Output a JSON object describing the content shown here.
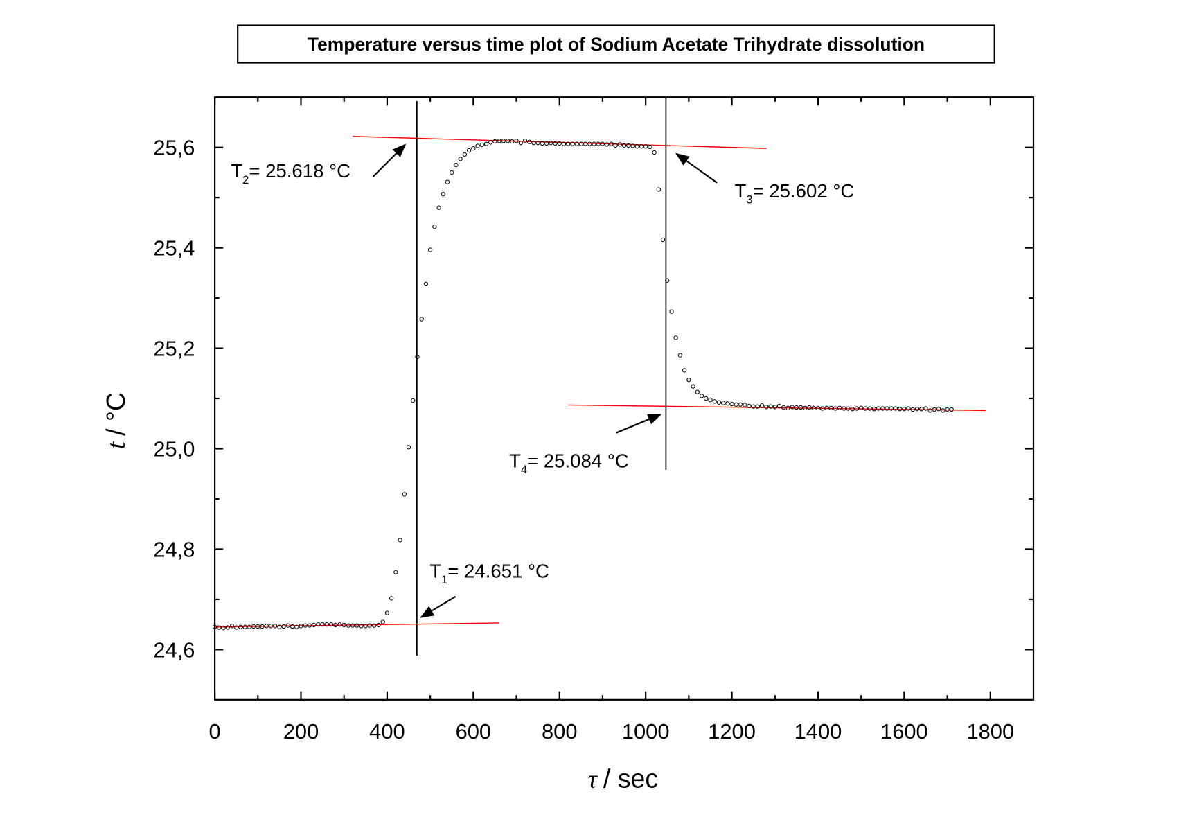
{
  "chart_data": {
    "type": "scatter",
    "title": "Temperature versus time plot of Sodium Acetate Trihydrate dissolution",
    "xlabel": {
      "symbol": "τ",
      "rest": "/ sec"
    },
    "ylabel": {
      "symbol": "t",
      "rest": "/ °C"
    },
    "xlim": [
      0,
      1900
    ],
    "ylim": [
      24.5,
      25.7
    ],
    "xticks": [
      0,
      200,
      400,
      600,
      800,
      1000,
      1200,
      1400,
      1600,
      1800
    ],
    "xminorticks": [
      100,
      300,
      500,
      700,
      900,
      1100,
      1300,
      1500,
      1700
    ],
    "yticks": [
      {
        "value": 24.6,
        "label": "24,6"
      },
      {
        "value": 24.8,
        "label": "24,8"
      },
      {
        "value": 25.0,
        "label": "25,0"
      },
      {
        "value": 25.2,
        "label": "25,2"
      },
      {
        "value": 25.4,
        "label": "25,4"
      },
      {
        "value": 25.6,
        "label": "25,6"
      }
    ],
    "yminorticks": [
      24.7,
      24.9,
      25.1,
      25.3,
      25.5
    ],
    "marker_color": "#000000",
    "x": [
      0,
      10,
      20,
      30,
      40,
      50,
      60,
      70,
      80,
      90,
      100,
      110,
      120,
      130,
      140,
      150,
      160,
      170,
      180,
      190,
      200,
      210,
      220,
      230,
      240,
      250,
      260,
      270,
      280,
      290,
      300,
      310,
      320,
      330,
      340,
      350,
      360,
      370,
      380,
      390,
      400,
      410,
      420,
      430,
      440,
      450,
      460,
      470,
      480,
      490,
      500,
      510,
      520,
      530,
      540,
      550,
      560,
      570,
      580,
      590,
      600,
      610,
      620,
      630,
      640,
      650,
      660,
      670,
      680,
      690,
      700,
      710,
      720,
      730,
      740,
      750,
      760,
      770,
      780,
      790,
      800,
      810,
      820,
      830,
      840,
      850,
      860,
      870,
      880,
      890,
      900,
      910,
      920,
      930,
      940,
      950,
      960,
      970,
      980,
      990,
      1000,
      1010,
      1020,
      1030,
      1040,
      1050,
      1060,
      1070,
      1080,
      1090,
      1100,
      1110,
      1120,
      1130,
      1140,
      1150,
      1160,
      1170,
      1180,
      1190,
      1200,
      1210,
      1220,
      1230,
      1240,
      1250,
      1260,
      1270,
      1280,
      1290,
      1300,
      1310,
      1320,
      1330,
      1340,
      1350,
      1360,
      1370,
      1380,
      1390,
      1400,
      1410,
      1420,
      1430,
      1440,
      1450,
      1460,
      1470,
      1480,
      1490,
      1500,
      1510,
      1520,
      1530,
      1540,
      1550,
      1560,
      1570,
      1580,
      1590,
      1600,
      1610,
      1620,
      1630,
      1640,
      1650,
      1660,
      1670,
      1680,
      1690,
      1700,
      1710
    ],
    "values": [
      24.645,
      24.644,
      24.643,
      24.644,
      24.647,
      24.644,
      24.645,
      24.645,
      24.645,
      24.646,
      24.646,
      24.646,
      24.647,
      24.647,
      24.647,
      24.645,
      24.646,
      24.648,
      24.646,
      24.645,
      24.647,
      24.648,
      24.648,
      24.649,
      24.65,
      24.65,
      24.65,
      24.65,
      24.649,
      24.65,
      24.649,
      24.648,
      24.648,
      24.648,
      24.647,
      24.647,
      24.648,
      24.648,
      24.649,
      24.655,
      24.673,
      24.702,
      24.754,
      24.818,
      24.909,
      25.003,
      25.096,
      25.183,
      25.258,
      25.328,
      25.396,
      25.442,
      25.48,
      25.507,
      25.531,
      25.55,
      25.565,
      25.577,
      25.586,
      25.594,
      25.598,
      25.603,
      25.605,
      25.607,
      25.61,
      25.612,
      25.613,
      25.613,
      25.613,
      25.612,
      25.613,
      25.609,
      25.613,
      25.611,
      25.609,
      25.609,
      25.608,
      25.608,
      25.609,
      25.608,
      25.608,
      25.607,
      25.607,
      25.607,
      25.607,
      25.607,
      25.607,
      25.607,
      25.607,
      25.607,
      25.607,
      25.606,
      25.607,
      25.604,
      25.606,
      25.604,
      25.604,
      25.603,
      25.602,
      25.602,
      25.602,
      25.601,
      25.59,
      25.516,
      25.416,
      25.335,
      25.273,
      25.221,
      25.186,
      25.156,
      25.137,
      25.124,
      25.113,
      25.105,
      25.1,
      25.097,
      25.094,
      25.092,
      25.091,
      25.09,
      25.089,
      25.088,
      25.088,
      25.087,
      25.085,
      25.084,
      25.084,
      25.086,
      25.083,
      25.084,
      25.083,
      25.085,
      25.082,
      25.081,
      25.083,
      25.082,
      25.082,
      25.081,
      25.082,
      25.081,
      25.081,
      25.08,
      25.081,
      25.081,
      25.08,
      25.081,
      25.08,
      25.08,
      25.079,
      25.08,
      25.081,
      25.08,
      25.08,
      25.079,
      25.08,
      25.08,
      25.08,
      25.08,
      25.08,
      25.079,
      25.079,
      25.08,
      25.078,
      25.079,
      25.079,
      25.08,
      25.076,
      25.078,
      25.079,
      25.076,
      25.078,
      25.078
    ],
    "reference_lines": [
      {
        "x": [
          0,
          660
        ],
        "y": [
          24.645,
          24.653
        ],
        "color": "#ff0000"
      },
      {
        "x": [
          320,
          1280
        ],
        "y": [
          25.622,
          25.598
        ],
        "color": "#ff0000"
      },
      {
        "x": [
          820,
          1790
        ],
        "y": [
          25.087,
          25.076
        ],
        "color": "#ff0000"
      },
      {
        "x": [
          469,
          469
        ],
        "y": [
          24.588,
          25.692
        ],
        "color": "#000000"
      },
      {
        "x": [
          1047,
          1047
        ],
        "y": [
          24.958,
          25.7
        ],
        "color": "#000000"
      }
    ],
    "annotations": [
      {
        "text": "T",
        "sub": "1",
        "rest": "= 24.651 °C"
      },
      {
        "text": "T",
        "sub": "2",
        "rest": "= 25.618 °C"
      },
      {
        "text": "T",
        "sub": "3",
        "rest": "= 25.602 °C"
      },
      {
        "text": "T",
        "sub": "4",
        "rest": "= 25.084 °C"
      }
    ]
  }
}
